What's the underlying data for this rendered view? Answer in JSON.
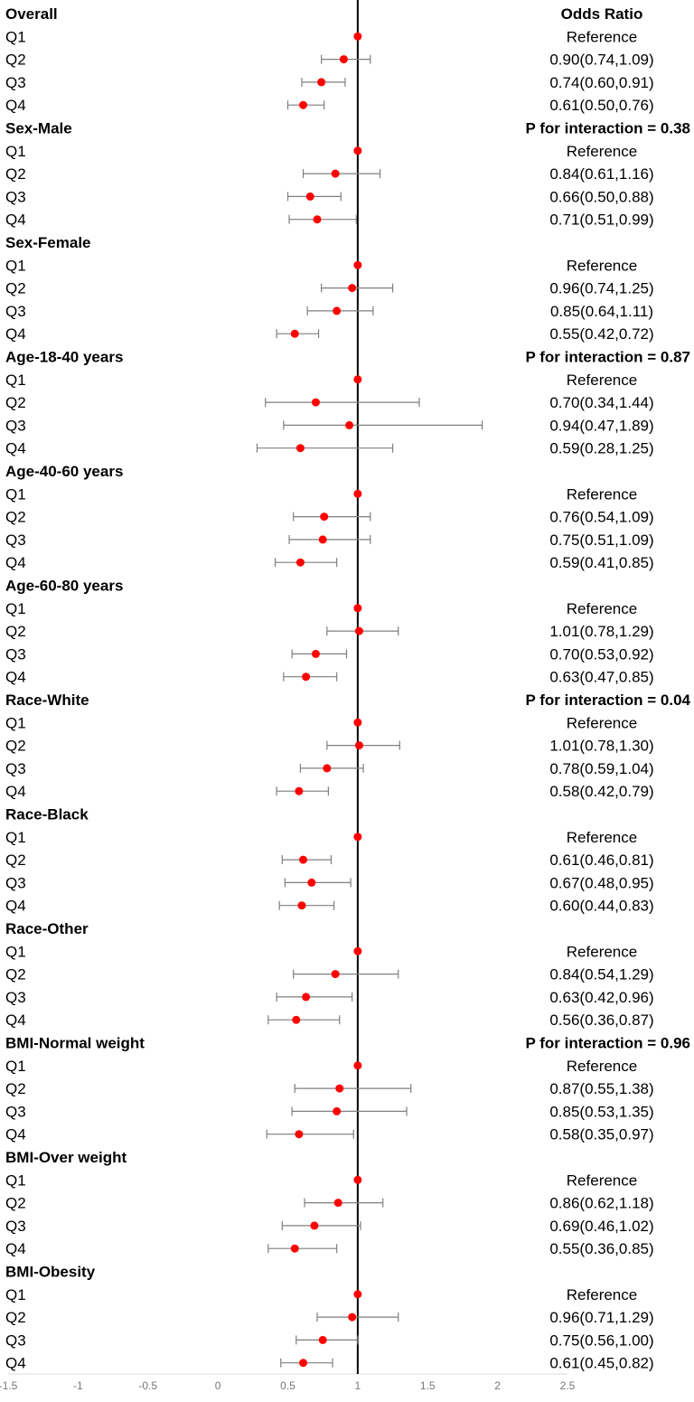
{
  "chart_data": {
    "type": "forest",
    "header_right": "Odds Ratio",
    "reference_line": 1,
    "xlim": [
      -1.5,
      2.5
    ],
    "xticks": [
      "-1.5",
      "-1",
      "-0.5",
      "0",
      "0.5",
      "1",
      "1.5",
      "2",
      "2.5"
    ],
    "point_color": "#ff0000",
    "groups": [
      {
        "name": "Overall",
        "p_interaction": "",
        "rows": [
          {
            "label": "Q1",
            "or": 1,
            "lo": null,
            "hi": null,
            "text": "Reference"
          },
          {
            "label": "Q2",
            "or": 0.9,
            "lo": 0.74,
            "hi": 1.09,
            "text": "0.90(0.74,1.09)"
          },
          {
            "label": "Q3",
            "or": 0.74,
            "lo": 0.6,
            "hi": 0.91,
            "text": "0.74(0.60,0.91)"
          },
          {
            "label": "Q4",
            "or": 0.61,
            "lo": 0.5,
            "hi": 0.76,
            "text": "0.61(0.50,0.76)"
          }
        ]
      },
      {
        "name": "Sex-Male",
        "p_interaction": "P for interaction = 0.38",
        "rows": [
          {
            "label": "Q1",
            "or": 1,
            "lo": null,
            "hi": null,
            "text": "Reference"
          },
          {
            "label": "Q2",
            "or": 0.84,
            "lo": 0.61,
            "hi": 1.16,
            "text": "0.84(0.61,1.16)"
          },
          {
            "label": "Q3",
            "or": 0.66,
            "lo": 0.5,
            "hi": 0.88,
            "text": "0.66(0.50,0.88)"
          },
          {
            "label": "Q4",
            "or": 0.71,
            "lo": 0.51,
            "hi": 0.99,
            "text": "0.71(0.51,0.99)"
          }
        ]
      },
      {
        "name": "Sex-Female",
        "p_interaction": "",
        "rows": [
          {
            "label": "Q1",
            "or": 1,
            "lo": null,
            "hi": null,
            "text": "Reference"
          },
          {
            "label": "Q2",
            "or": 0.96,
            "lo": 0.74,
            "hi": 1.25,
            "text": "0.96(0.74,1.25)"
          },
          {
            "label": "Q3",
            "or": 0.85,
            "lo": 0.64,
            "hi": 1.11,
            "text": "0.85(0.64,1.11)"
          },
          {
            "label": "Q4",
            "or": 0.55,
            "lo": 0.42,
            "hi": 0.72,
            "text": "0.55(0.42,0.72)"
          }
        ]
      },
      {
        "name": "Age-18-40 years",
        "p_interaction": "P for interaction = 0.87",
        "rows": [
          {
            "label": "Q1",
            "or": 1,
            "lo": null,
            "hi": null,
            "text": "Reference"
          },
          {
            "label": "Q2",
            "or": 0.7,
            "lo": 0.34,
            "hi": 1.44,
            "text": "0.70(0.34,1.44)"
          },
          {
            "label": "Q3",
            "or": 0.94,
            "lo": 0.47,
            "hi": 1.89,
            "text": "0.94(0.47,1.89)"
          },
          {
            "label": "Q4",
            "or": 0.59,
            "lo": 0.28,
            "hi": 1.25,
            "text": "0.59(0.28,1.25)"
          }
        ]
      },
      {
        "name": "Age-40-60 years",
        "p_interaction": "",
        "rows": [
          {
            "label": "Q1",
            "or": 1,
            "lo": null,
            "hi": null,
            "text": "Reference"
          },
          {
            "label": "Q2",
            "or": 0.76,
            "lo": 0.54,
            "hi": 1.09,
            "text": "0.76(0.54,1.09)"
          },
          {
            "label": "Q3",
            "or": 0.75,
            "lo": 0.51,
            "hi": 1.09,
            "text": "0.75(0.51,1.09)"
          },
          {
            "label": "Q4",
            "or": 0.59,
            "lo": 0.41,
            "hi": 0.85,
            "text": "0.59(0.41,0.85)"
          }
        ]
      },
      {
        "name": "Age-60-80 years",
        "p_interaction": "",
        "rows": [
          {
            "label": "Q1",
            "or": 1,
            "lo": null,
            "hi": null,
            "text": "Reference"
          },
          {
            "label": "Q2",
            "or": 1.01,
            "lo": 0.78,
            "hi": 1.29,
            "text": "1.01(0.78,1.29)"
          },
          {
            "label": "Q3",
            "or": 0.7,
            "lo": 0.53,
            "hi": 0.92,
            "text": "0.70(0.53,0.92)"
          },
          {
            "label": "Q4",
            "or": 0.63,
            "lo": 0.47,
            "hi": 0.85,
            "text": "0.63(0.47,0.85)"
          }
        ]
      },
      {
        "name": "Race-White",
        "p_interaction": "P for interaction = 0.04",
        "rows": [
          {
            "label": "Q1",
            "or": 1,
            "lo": null,
            "hi": null,
            "text": "Reference"
          },
          {
            "label": "Q2",
            "or": 1.01,
            "lo": 0.78,
            "hi": 1.3,
            "text": "1.01(0.78,1.30)"
          },
          {
            "label": "Q3",
            "or": 0.78,
            "lo": 0.59,
            "hi": 1.04,
            "text": "0.78(0.59,1.04)"
          },
          {
            "label": "Q4",
            "or": 0.58,
            "lo": 0.42,
            "hi": 0.79,
            "text": "0.58(0.42,0.79)"
          }
        ]
      },
      {
        "name": "Race-Black",
        "p_interaction": "",
        "rows": [
          {
            "label": "Q1",
            "or": 1,
            "lo": null,
            "hi": null,
            "text": "Reference"
          },
          {
            "label": "Q2",
            "or": 0.61,
            "lo": 0.46,
            "hi": 0.81,
            "text": "0.61(0.46,0.81)"
          },
          {
            "label": "Q3",
            "or": 0.67,
            "lo": 0.48,
            "hi": 0.95,
            "text": "0.67(0.48,0.95)"
          },
          {
            "label": "Q4",
            "or": 0.6,
            "lo": 0.44,
            "hi": 0.83,
            "text": "0.60(0.44,0.83)"
          }
        ]
      },
      {
        "name": "Race-Other",
        "p_interaction": "",
        "rows": [
          {
            "label": "Q1",
            "or": 1,
            "lo": null,
            "hi": null,
            "text": "Reference"
          },
          {
            "label": "Q2",
            "or": 0.84,
            "lo": 0.54,
            "hi": 1.29,
            "text": "0.84(0.54,1.29)"
          },
          {
            "label": "Q3",
            "or": 0.63,
            "lo": 0.42,
            "hi": 0.96,
            "text": "0.63(0.42,0.96)"
          },
          {
            "label": "Q4",
            "or": 0.56,
            "lo": 0.36,
            "hi": 0.87,
            "text": "0.56(0.36,0.87)"
          }
        ]
      },
      {
        "name": "BMI-Normal weight",
        "p_interaction": "P for interaction = 0.96",
        "rows": [
          {
            "label": "Q1",
            "or": 1,
            "lo": null,
            "hi": null,
            "text": "Reference"
          },
          {
            "label": "Q2",
            "or": 0.87,
            "lo": 0.55,
            "hi": 1.38,
            "text": "0.87(0.55,1.38)"
          },
          {
            "label": "Q3",
            "or": 0.85,
            "lo": 0.53,
            "hi": 1.35,
            "text": "0.85(0.53,1.35)"
          },
          {
            "label": "Q4",
            "or": 0.58,
            "lo": 0.35,
            "hi": 0.97,
            "text": "0.58(0.35,0.97)"
          }
        ]
      },
      {
        "name": "BMI-Over weight",
        "p_interaction": "",
        "rows": [
          {
            "label": "Q1",
            "or": 1,
            "lo": null,
            "hi": null,
            "text": "Reference"
          },
          {
            "label": "Q2",
            "or": 0.86,
            "lo": 0.62,
            "hi": 1.18,
            "text": "0.86(0.62,1.18)"
          },
          {
            "label": "Q3",
            "or": 0.69,
            "lo": 0.46,
            "hi": 1.02,
            "text": "0.69(0.46,1.02)"
          },
          {
            "label": "Q4",
            "or": 0.55,
            "lo": 0.36,
            "hi": 0.85,
            "text": "0.55(0.36,0.85)"
          }
        ]
      },
      {
        "name": "BMI-Obesity",
        "p_interaction": "",
        "rows": [
          {
            "label": "Q1",
            "or": 1,
            "lo": null,
            "hi": null,
            "text": "Reference"
          },
          {
            "label": "Q2",
            "or": 0.96,
            "lo": 0.71,
            "hi": 1.29,
            "text": "0.96(0.71,1.29)"
          },
          {
            "label": "Q3",
            "or": 0.75,
            "lo": 0.56,
            "hi": 1.0,
            "text": "0.75(0.56,1.00)"
          },
          {
            "label": "Q4",
            "or": 0.61,
            "lo": 0.45,
            "hi": 0.82,
            "text": "0.61(0.45,0.82)"
          }
        ]
      }
    ]
  }
}
